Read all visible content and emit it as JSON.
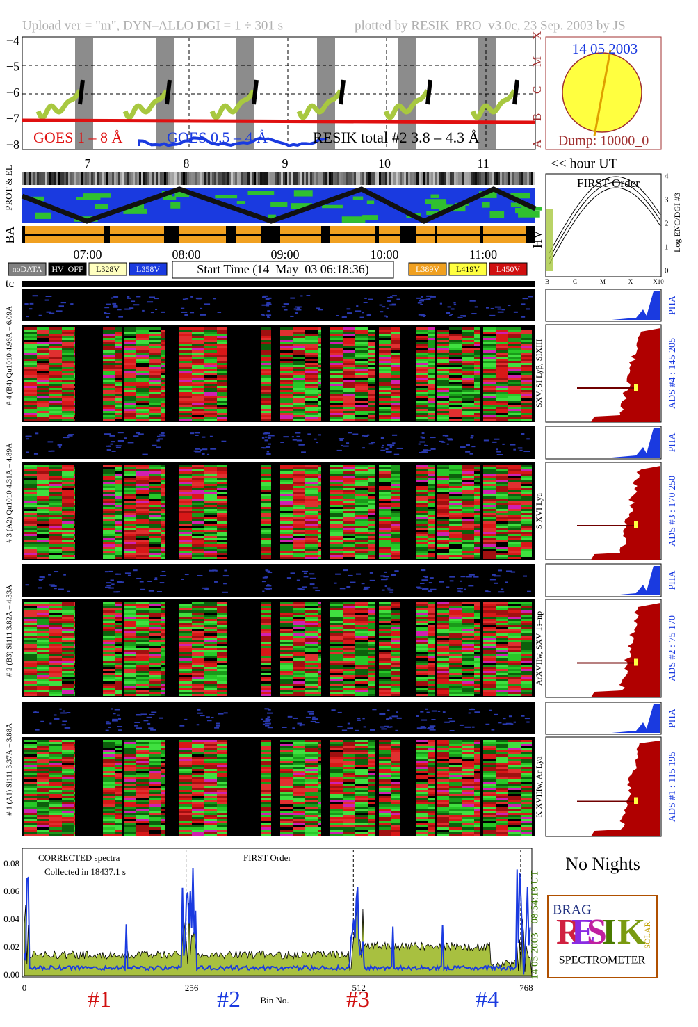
{
  "header": {
    "upload": "Upload ver = \"m\", DYN–ALLO DGI =   1 ÷ 301 s",
    "plotted": "plotted by RESIK_PRO_v3.0c, 23 Sep. 2003 by JS"
  },
  "goes": {
    "yticks": [
      "−4",
      "−5",
      "−6",
      "−7",
      "−8"
    ],
    "classes": [
      "X",
      "M",
      "C",
      "B",
      "A"
    ],
    "label_1_8": "GOES 1 – 8 Å",
    "label_05_4": "GOES 0.5 – 4 Å",
    "label_resik": "RESIK total #2  3.8 – 4.3 Å",
    "hours": [
      "7",
      "8",
      "9",
      "10",
      "11"
    ],
    "hour_unit": "<< hour UT"
  },
  "sun": {
    "date": "14 05 2003",
    "dump": "Dump: 10000_0"
  },
  "rows": {
    "prot_el": "PROT & EL",
    "ba": "BA",
    "hv": "HV",
    "tc": "tc"
  },
  "times": [
    "07:00",
    "08:00",
    "09:00",
    "10:00",
    "11:00"
  ],
  "legend": {
    "left": [
      "noDATA",
      "HV–OFF",
      "L328V",
      "L358V"
    ],
    "start": "Start Time (14–May–03 06:18:36)",
    "right": [
      "L389V",
      "L419V",
      "L450V"
    ]
  },
  "hv_panel": {
    "title": "FIRST Order",
    "axis": "Log ENC/DGI #3",
    "yticks": [
      "0",
      "1",
      "2",
      "3",
      "4"
    ],
    "xticks": [
      "B",
      "C",
      "M",
      "X",
      "X10"
    ]
  },
  "channels": [
    {
      "label": "# 4 (B4) Qu1010 4.96Å – 6.09Å",
      "lines": "SXV, SI Lyβ, SIXIII",
      "ads": "ADS #4 :  145 205",
      "pha": "PHA"
    },
    {
      "label": "# 3 (A2) Qu1010 4.31Å – 4.89Å",
      "lines": "S XVI Lya",
      "ads": "ADS #3 :  170 250",
      "pha": "PHA"
    },
    {
      "label": "# 2 (B3) Si111 3.82Å – 4.33Å",
      "lines": "ArXVIIw, SXV 1s–np",
      "ads": "ADS #2 :   75 170",
      "pha": "PHA"
    },
    {
      "label": "# 1 (A1) Si111 3.37Å – 3.88Å",
      "lines": "K XVIIIw, Ar Lya",
      "ads": "ADS #1 :  115 195",
      "pha": "PHA"
    }
  ],
  "spectrum": {
    "yticks": [
      "0.00",
      "0.02",
      "0.04",
      "0.06",
      "0.08"
    ],
    "xticks": [
      "0",
      "256",
      "512",
      "768"
    ],
    "xlabel": "Bin No.",
    "title": "CORRECTED spectra",
    "collected": "Collected in 18437.1 s",
    "order": "FIRST Order",
    "time": "08:54:18 UT",
    "date": "14 05 2003",
    "crystals": [
      "#1",
      "#2",
      "#3",
      "#4"
    ]
  },
  "no_nights": "No Nights",
  "logo": {
    "brag": "BRAG",
    "letters": [
      "R",
      "E",
      "S",
      "I",
      "K"
    ],
    "solar": "SOLAR",
    "spectrometer": "SPECTROMETER"
  }
}
